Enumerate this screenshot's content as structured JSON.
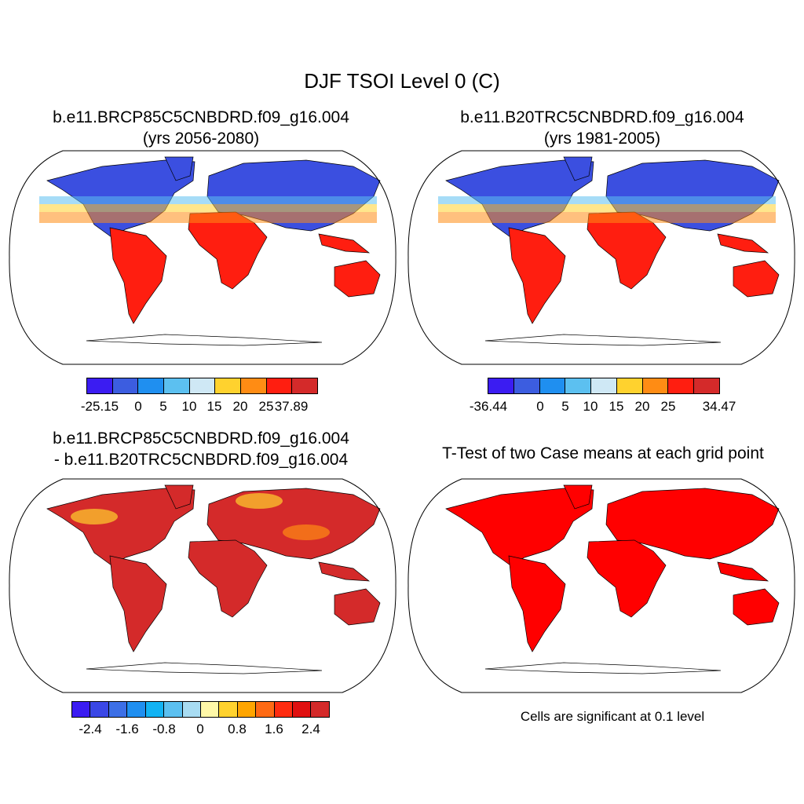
{
  "figure": {
    "main_title": "DJF TSOI Level 0 (C)",
    "panel1": {
      "title_line1": "b.e11.BRCP85C5CNBDRD.f09_g16.004",
      "title_line2": "(yrs 2056-2080)"
    },
    "panel2": {
      "title_line1": "b.e11.B20TRC5CNBDRD.f09_g16.004",
      "title_line2": "(yrs 1981-2005)"
    },
    "panel3": {
      "title_line1": "b.e11.BRCP85C5CNBDRD.f09_g16.004",
      "title_line2": "- b.e11.B20TRC5CNBDRD.f09_g16.004"
    },
    "panel4": {
      "title": "T-Test of two Case means at each grid point",
      "note": "Cells are significant at 0.1 level"
    }
  },
  "colorbars": {
    "cbar1": {
      "colors": [
        "#3b1cf2",
        "#3c5de0",
        "#1f8ff0",
        "#5cc0f0",
        "#cfe8f5",
        "#ffd22e",
        "#ff8c14",
        "#ff1e10",
        "#d42a2a"
      ],
      "labels": [
        "-25.15",
        "0",
        "5",
        "10",
        "15",
        "20",
        "25",
        "37.89"
      ]
    },
    "cbar2": {
      "colors": [
        "#3b1cf2",
        "#3c5de0",
        "#1f8ff0",
        "#5cc0f0",
        "#cfe8f5",
        "#ffd22e",
        "#ff8c14",
        "#ff1e10",
        "#d42a2a"
      ],
      "labels": [
        "-36.44",
        "0",
        "5",
        "10",
        "15",
        "20",
        "25",
        "34.47"
      ]
    },
    "cbar3": {
      "colors": [
        "#3b1cf2",
        "#3a47e6",
        "#3c6fe6",
        "#1f8ff0",
        "#12b3f3",
        "#5cc0f0",
        "#a8dcf2",
        "#fff8a8",
        "#ffd22e",
        "#ffa500",
        "#ff6a14",
        "#ff2c10",
        "#e01010",
        "#d42a2a"
      ],
      "labels": [
        "-2.4",
        "-1.6",
        "-0.8",
        "0",
        "0.8",
        "1.6",
        "2.4"
      ]
    }
  },
  "map_fill_colors": {
    "land_base": "#d42a2a",
    "significant": "#ff0000",
    "cold": "#3b4fe0",
    "cool": "#5cc0f0",
    "warm": "#ffd22e",
    "orange": "#ff8c14",
    "hot": "#ff1e10"
  }
}
